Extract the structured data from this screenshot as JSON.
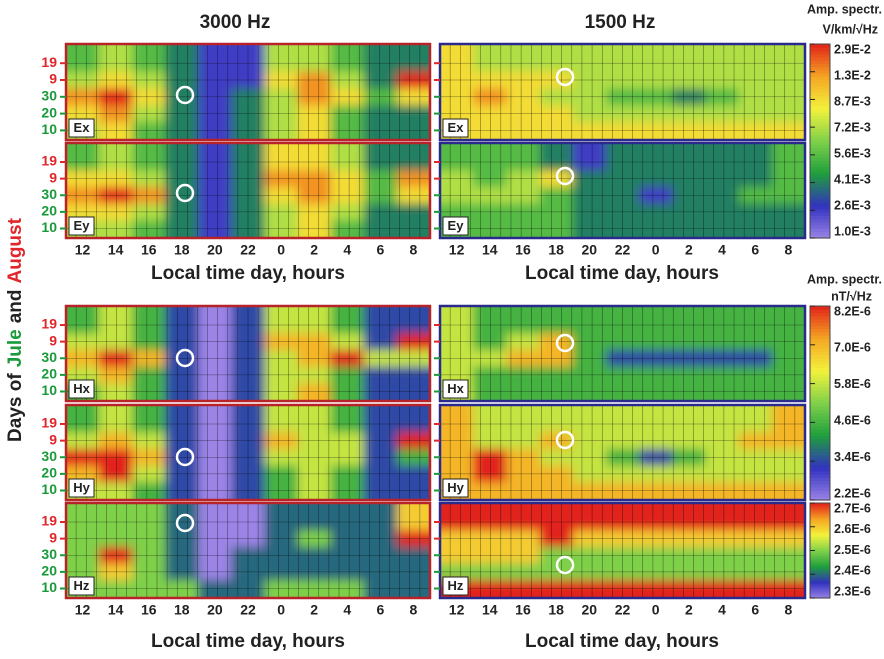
{
  "chart_data": {
    "type": "heatmap",
    "column_titles": [
      "3000 Hz",
      "1500 Hz"
    ],
    "y_title_parts": [
      "Days of",
      "Jule",
      "and",
      "August"
    ],
    "y_title_colors": [
      "#222222",
      "#1a9a3a",
      "#222222",
      "#e0262b"
    ],
    "xlabel": "Local time day, hours",
    "categories": [
      "12",
      "14",
      "16",
      "18",
      "20",
      "22",
      "0",
      "2",
      "4",
      "6",
      "8"
    ],
    "days": [
      "19",
      "9",
      "30",
      "20",
      "10"
    ],
    "day_colors": [
      "#e0262b",
      "#e0262b",
      "#1a9a3a",
      "#1a9a3a",
      "#1a9a3a"
    ],
    "colormap": [
      "#9b84e6",
      "#3232c0",
      "#1e9e3c",
      "#7fd04a",
      "#f2f23c",
      "#f5a623",
      "#e2231a"
    ],
    "colorbars": [
      {
        "title": "Amp. spectr.",
        "units": "V/km/√Hz",
        "ticks": [
          {
            "value": 0.001,
            "label": "1.0E-3"
          },
          {
            "value": 0.0026,
            "label": "2.6E-3"
          },
          {
            "value": 0.0041,
            "label": "4.1E-3"
          },
          {
            "value": 0.0056,
            "label": "5.6E-3"
          },
          {
            "value": 0.0072,
            "label": "7.2E-3"
          },
          {
            "value": 0.0087,
            "label": "8.7E-3"
          },
          {
            "value": 0.013,
            "label": "1.3E-2"
          },
          {
            "value": 0.029,
            "label": "2.9E-2"
          }
        ]
      },
      {
        "title": "Amp. spectr.",
        "units": "nT/√Hz",
        "ticks": [
          {
            "value": 2.2e-06,
            "label": "2.2E-6"
          },
          {
            "value": 3.4e-06,
            "label": "3.4E-6"
          },
          {
            "value": 4.6e-06,
            "label": "4.6E-6"
          },
          {
            "value": 5.8e-06,
            "label": "5.8E-6"
          },
          {
            "value": 7e-06,
            "label": "7.0E-6"
          },
          {
            "value": 8.2e-06,
            "label": "8.2E-6"
          }
        ]
      },
      {
        "ticks": [
          {
            "value": 2.3e-06,
            "label": "2.3E-6"
          },
          {
            "value": 2.4e-06,
            "label": "2.4E-6"
          },
          {
            "value": 2.5e-06,
            "label": "2.5E-6"
          },
          {
            "value": 2.6e-06,
            "label": "2.6E-6"
          },
          {
            "value": 2.7e-06,
            "label": "2.7E-6"
          }
        ]
      }
    ],
    "panels": [
      {
        "label": "Ex",
        "colorbar": 0,
        "values": [
          [
            [
              0.0056,
              0.0072,
              0.0056,
              0.0041,
              0.0026,
              0.0026,
              0.0072,
              0.0072,
              0.0056,
              0.0041,
              0.0041
            ],
            [
              0.0072,
              0.0087,
              0.0072,
              0.0041,
              0.0026,
              0.0026,
              0.0087,
              0.013,
              0.0072,
              0.0041,
              0.029
            ],
            [
              0.013,
              0.029,
              0.0087,
              0.0041,
              0.0026,
              0.0041,
              0.0072,
              0.013,
              0.0087,
              0.0056,
              0.0087
            ],
            [
              0.0087,
              0.013,
              0.0072,
              0.0041,
              0.0026,
              0.0041,
              0.0072,
              0.0087,
              0.0056,
              0.0041,
              0.0041
            ],
            [
              0.0072,
              0.0087,
              0.0056,
              0.0041,
              0.0026,
              0.0041,
              0.0072,
              0.0087,
              0.0056,
              0.0041,
              0.0041
            ]
          ],
          [
            [
              0.0087,
              0.0072,
              0.0072,
              0.0072,
              0.0072,
              0.0072,
              0.0072,
              0.0072,
              0.0072,
              0.0072,
              0.0072
            ],
            [
              0.0087,
              0.0087,
              0.0087,
              0.0087,
              0.0072,
              0.0072,
              0.0072,
              0.0072,
              0.0072,
              0.0072,
              0.0072
            ],
            [
              0.0087,
              0.013,
              0.0087,
              0.0072,
              0.0072,
              0.0056,
              0.0056,
              0.0041,
              0.0056,
              0.0072,
              0.0072
            ],
            [
              0.0087,
              0.0087,
              0.0087,
              0.0087,
              0.0072,
              0.0072,
              0.0072,
              0.0072,
              0.0072,
              0.0072,
              0.0072
            ],
            [
              0.0087,
              0.0087,
              0.0087,
              0.0087,
              0.0087,
              0.0087,
              0.0087,
              0.0087,
              0.0087,
              0.0087,
              0.0087
            ]
          ]
        ]
      },
      {
        "label": "Ey",
        "colorbar": 0,
        "values": [
          [
            [
              0.0056,
              0.0072,
              0.0056,
              0.0041,
              0.0026,
              0.0041,
              0.0087,
              0.0087,
              0.0072,
              0.0041,
              0.0041
            ],
            [
              0.0087,
              0.0087,
              0.0072,
              0.0041,
              0.0026,
              0.0041,
              0.013,
              0.013,
              0.0087,
              0.0056,
              0.013
            ],
            [
              0.013,
              0.029,
              0.013,
              0.0041,
              0.0026,
              0.0041,
              0.0087,
              0.013,
              0.0087,
              0.0056,
              0.0087
            ],
            [
              0.0087,
              0.0087,
              0.0072,
              0.0041,
              0.0026,
              0.0041,
              0.0072,
              0.0087,
              0.0072,
              0.0041,
              0.0041
            ],
            [
              0.0072,
              0.0072,
              0.0056,
              0.0041,
              0.0026,
              0.0041,
              0.0072,
              0.0087,
              0.0056,
              0.0041,
              0.0041
            ]
          ],
          [
            [
              0.0056,
              0.0056,
              0.0056,
              0.0041,
              0.0026,
              0.0041,
              0.0041,
              0.0041,
              0.0041,
              0.0041,
              0.0056
            ],
            [
              0.0072,
              0.0056,
              0.0072,
              0.0087,
              0.0041,
              0.0041,
              0.0041,
              0.0041,
              0.0041,
              0.0041,
              0.0056
            ],
            [
              0.0072,
              0.0072,
              0.0072,
              0.0056,
              0.0041,
              0.0041,
              0.0026,
              0.0041,
              0.0041,
              0.0056,
              0.0056
            ],
            [
              0.0056,
              0.0056,
              0.0056,
              0.0056,
              0.0041,
              0.0041,
              0.0041,
              0.0041,
              0.0041,
              0.0041,
              0.0041
            ],
            [
              0.0056,
              0.0056,
              0.0056,
              0.0056,
              0.0041,
              0.0041,
              0.0041,
              0.0041,
              0.0041,
              0.0041,
              0.0041
            ]
          ]
        ]
      },
      {
        "label": "Hx",
        "colorbar": 1,
        "values": [
          [
            [
              4.6e-06,
              5.8e-06,
              4.6e-06,
              3.4e-06,
              2.2e-06,
              3.4e-06,
              5.8e-06,
              5.8e-06,
              4.6e-06,
              3.4e-06,
              3.4e-06
            ],
            [
              5.8e-06,
              5.8e-06,
              4.6e-06,
              3.4e-06,
              2.2e-06,
              3.4e-06,
              7e-06,
              7e-06,
              5.8e-06,
              3.4e-06,
              8.2e-06
            ],
            [
              7e-06,
              8.2e-06,
              7e-06,
              3.4e-06,
              2.2e-06,
              3.4e-06,
              5.8e-06,
              7e-06,
              8.2e-06,
              5.8e-06,
              5.8e-06
            ],
            [
              5.8e-06,
              7e-06,
              4.6e-06,
              3.4e-06,
              2.2e-06,
              3.4e-06,
              5.8e-06,
              5.8e-06,
              4.6e-06,
              3.4e-06,
              3.4e-06
            ],
            [
              4.6e-06,
              5.8e-06,
              4.6e-06,
              3.4e-06,
              2.2e-06,
              3.4e-06,
              5.8e-06,
              7e-06,
              4.6e-06,
              3.4e-06,
              3.4e-06
            ]
          ],
          [
            [
              5.8e-06,
              4.6e-06,
              4.6e-06,
              4.6e-06,
              4.6e-06,
              4.6e-06,
              4.6e-06,
              4.6e-06,
              4.6e-06,
              4.6e-06,
              4.6e-06
            ],
            [
              5.8e-06,
              4.6e-06,
              5.8e-06,
              7e-06,
              4.6e-06,
              4.6e-06,
              4.6e-06,
              4.6e-06,
              4.6e-06,
              4.6e-06,
              4.6e-06
            ],
            [
              5.8e-06,
              5.8e-06,
              7e-06,
              7e-06,
              4.6e-06,
              3.4e-06,
              3.4e-06,
              3.4e-06,
              3.4e-06,
              3.4e-06,
              4.6e-06
            ],
            [
              5.8e-06,
              4.6e-06,
              4.6e-06,
              4.6e-06,
              4.6e-06,
              4.6e-06,
              4.6e-06,
              4.6e-06,
              4.6e-06,
              4.6e-06,
              4.6e-06
            ],
            [
              5.8e-06,
              4.6e-06,
              4.6e-06,
              4.6e-06,
              4.6e-06,
              4.6e-06,
              4.6e-06,
              4.6e-06,
              4.6e-06,
              4.6e-06,
              4.6e-06
            ]
          ]
        ]
      },
      {
        "label": "Hy",
        "colorbar": 1,
        "values": [
          [
            [
              4.6e-06,
              5.8e-06,
              4.6e-06,
              3.4e-06,
              2.2e-06,
              3.4e-06,
              5.8e-06,
              5.8e-06,
              4.6e-06,
              3.4e-06,
              3.4e-06
            ],
            [
              5.8e-06,
              7e-06,
              5.8e-06,
              3.4e-06,
              2.2e-06,
              3.4e-06,
              7e-06,
              5.8e-06,
              5.8e-06,
              3.4e-06,
              8.2e-06
            ],
            [
              8.2e-06,
              8.2e-06,
              7e-06,
              3.4e-06,
              2.2e-06,
              3.4e-06,
              5.8e-06,
              5.8e-06,
              5.8e-06,
              3.4e-06,
              4.6e-06
            ],
            [
              7e-06,
              8.2e-06,
              5.8e-06,
              3.4e-06,
              2.2e-06,
              3.4e-06,
              4.6e-06,
              5.8e-06,
              4.6e-06,
              3.4e-06,
              3.4e-06
            ],
            [
              5.8e-06,
              5.8e-06,
              4.6e-06,
              3.4e-06,
              2.2e-06,
              3.4e-06,
              4.6e-06,
              5.8e-06,
              4.6e-06,
              3.4e-06,
              3.4e-06
            ]
          ],
          [
            [
              7e-06,
              5.8e-06,
              5.8e-06,
              5.8e-06,
              5.8e-06,
              5.8e-06,
              5.8e-06,
              5.8e-06,
              5.8e-06,
              5.8e-06,
              7e-06
            ],
            [
              7e-06,
              5.8e-06,
              5.8e-06,
              7e-06,
              5.8e-06,
              5.8e-06,
              5.8e-06,
              5.8e-06,
              5.8e-06,
              7e-06,
              7e-06
            ],
            [
              7e-06,
              8.2e-06,
              7e-06,
              5.8e-06,
              5.8e-06,
              4.6e-06,
              3.4e-06,
              4.6e-06,
              5.8e-06,
              5.8e-06,
              5.8e-06
            ],
            [
              7e-06,
              8.2e-06,
              7e-06,
              7e-06,
              5.8e-06,
              5.8e-06,
              5.8e-06,
              5.8e-06,
              5.8e-06,
              5.8e-06,
              5.8e-06
            ],
            [
              7e-06,
              7e-06,
              7e-06,
              7e-06,
              7e-06,
              7e-06,
              7e-06,
              7e-06,
              7e-06,
              7e-06,
              7e-06
            ]
          ]
        ]
      },
      {
        "label": "Hz",
        "colorbar": 2,
        "values": [
          [
            [
              2.5e-06,
              2.5e-06,
              2.5e-06,
              2.4e-06,
              2.3e-06,
              2.3e-06,
              2.4e-06,
              2.4e-06,
              2.4e-06,
              2.4e-06,
              2.6e-06
            ],
            [
              2.5e-06,
              2.5e-06,
              2.5e-06,
              2.4e-06,
              2.3e-06,
              2.3e-06,
              2.4e-06,
              2.5e-06,
              2.4e-06,
              2.4e-06,
              2.7e-06
            ],
            [
              2.5e-06,
              2.7e-06,
              2.5e-06,
              2.4e-06,
              2.3e-06,
              2.4e-06,
              2.4e-06,
              2.4e-06,
              2.4e-06,
              2.4e-06,
              2.4e-06
            ],
            [
              2.5e-06,
              2.6e-06,
              2.5e-06,
              2.4e-06,
              2.3e-06,
              2.4e-06,
              2.4e-06,
              2.4e-06,
              2.4e-06,
              2.4e-06,
              2.4e-06
            ],
            [
              2.5e-06,
              2.5e-06,
              2.5e-06,
              2.5e-06,
              2.4e-06,
              2.4e-06,
              2.5e-06,
              2.5e-06,
              2.5e-06,
              2.4e-06,
              2.4e-06
            ]
          ],
          [
            [
              2.7e-06,
              2.7e-06,
              2.7e-06,
              2.7e-06,
              2.7e-06,
              2.7e-06,
              2.7e-06,
              2.7e-06,
              2.7e-06,
              2.7e-06,
              2.7e-06
            ],
            [
              2.6e-06,
              2.6e-06,
              2.6e-06,
              2.7e-06,
              2.6e-06,
              2.6e-06,
              2.6e-06,
              2.6e-06,
              2.6e-06,
              2.6e-06,
              2.6e-06
            ],
            [
              2.6e-06,
              2.6e-06,
              2.6e-06,
              2.5e-06,
              2.5e-06,
              2.5e-06,
              2.5e-06,
              2.5e-06,
              2.5e-06,
              2.5e-06,
              2.5e-06
            ],
            [
              2.5e-06,
              2.5e-06,
              2.5e-06,
              2.5e-06,
              2.5e-06,
              2.5e-06,
              2.5e-06,
              2.5e-06,
              2.5e-06,
              2.5e-06,
              2.5e-06
            ],
            [
              2.7e-06,
              2.7e-06,
              2.7e-06,
              2.7e-06,
              2.7e-06,
              2.7e-06,
              2.7e-06,
              2.7e-06,
              2.7e-06,
              2.7e-06,
              2.7e-06
            ]
          ]
        ]
      }
    ]
  }
}
